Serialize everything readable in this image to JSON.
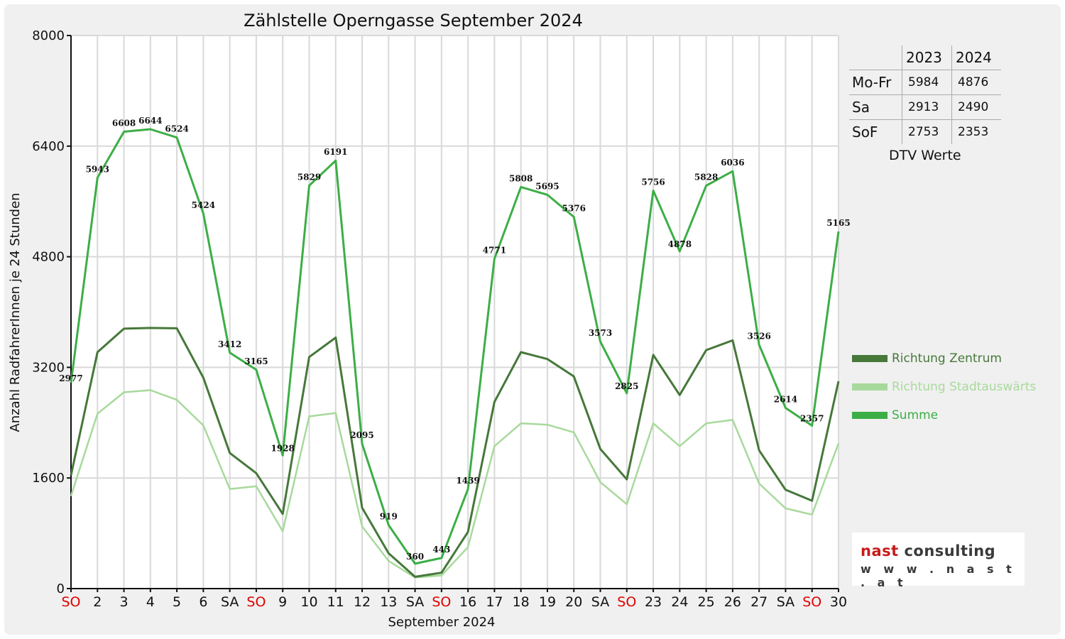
{
  "chart_data": {
    "type": "line",
    "title": "Zählstelle Operngasse September 2024",
    "xlabel": "September 2024",
    "ylabel": "Anzahl RadfahrerInnen je 24 Stunden",
    "ylim": [
      0,
      8000
    ],
    "yticks": [
      0,
      1600,
      3200,
      4800,
      6400,
      8000
    ],
    "categories": [
      "SO",
      "2",
      "3",
      "4",
      "5",
      "6",
      "SA",
      "SO",
      "9",
      "10",
      "11",
      "12",
      "13",
      "SA",
      "SO",
      "16",
      "17",
      "18",
      "19",
      "20",
      "SA",
      "SO",
      "23",
      "24",
      "25",
      "26",
      "27",
      "SA",
      "SO",
      "30"
    ],
    "red_categories": [
      0,
      7,
      14,
      21,
      28
    ],
    "grid": true,
    "legend_position": "right",
    "series": [
      {
        "name": "Richtung Zentrum",
        "color": "#46783a",
        "values": [
          1640,
          3420,
          3760,
          3770,
          3765,
          3050,
          1960,
          1670,
          1080,
          3350,
          3630,
          1170,
          510,
          170,
          230,
          820,
          2700,
          3420,
          3320,
          3070,
          2020,
          1580,
          3380,
          2800,
          3450,
          3590,
          2000,
          1430,
          1270,
          3000
        ]
      },
      {
        "name": "Richtung Stadtauswärts",
        "color": "#a8d99c",
        "values": [
          1340,
          2530,
          2840,
          2870,
          2730,
          2360,
          1440,
          1480,
          830,
          2490,
          2540,
          900,
          400,
          160,
          190,
          600,
          2060,
          2390,
          2370,
          2260,
          1540,
          1220,
          2390,
          2060,
          2390,
          2440,
          1520,
          1160,
          1070,
          2100
        ]
      },
      {
        "name": "Summe",
        "color": "#3cae46",
        "values": [
          2977,
          5943,
          6608,
          6644,
          6524,
          5424,
          3412,
          3165,
          1928,
          5829,
          6191,
          2095,
          919,
          360,
          443,
          1439,
          4771,
          5808,
          5695,
          5376,
          3573,
          2825,
          5756,
          4878,
          5828,
          6036,
          3526,
          2614,
          2357,
          5165
        ]
      }
    ],
    "data_labels": [
      "2977",
      "5943",
      "6608",
      "6644",
      "6524",
      "5424",
      "3412",
      "3165",
      "1928",
      "5829",
      "6191",
      "2095",
      "919",
      "360",
      "443",
      "1439",
      "4771",
      "5808",
      "5695",
      "5376",
      "3573",
      "2825",
      "5756",
      "4878",
      "5828",
      "6036",
      "3526",
      "2614",
      "2357",
      "5165"
    ]
  },
  "dtv_table": {
    "columns": [
      "2023",
      "2024"
    ],
    "rows": [
      {
        "label": "Mo-Fr",
        "values": [
          "5984",
          "4876"
        ]
      },
      {
        "label": "Sa",
        "values": [
          "2913",
          "2490"
        ]
      },
      {
        "label": "SoF",
        "values": [
          "2753",
          "2353"
        ]
      }
    ],
    "caption": "DTV Werte"
  },
  "logo": {
    "brand": "nast",
    "suffix": " consulting",
    "url": "w w w . n a s t . a t"
  }
}
